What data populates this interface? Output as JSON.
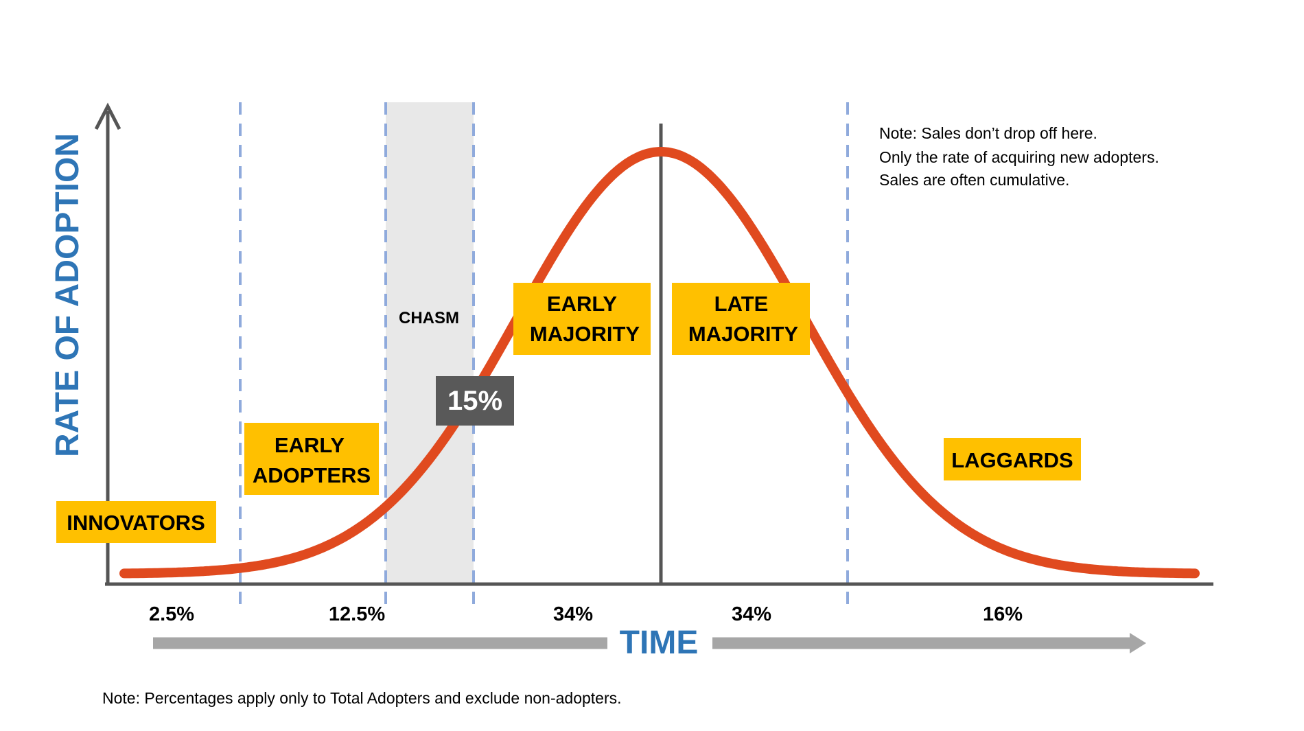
{
  "colors": {
    "curve": "#e04a1f",
    "axis": "#555555",
    "divider": "#8faadc",
    "chasm_fill": "#e8e8e8",
    "label_fill": "#ffc000",
    "axis_title": "#2e75b6",
    "time_arrow": "#a6a6a6",
    "badge_fill": "#595959"
  },
  "y_axis_title": "RATE OF ADOPTION",
  "x_axis_title": "TIME",
  "chasm": {
    "label": "CHASM",
    "badge": "15%"
  },
  "segments": [
    {
      "id": "innovators",
      "label_lines": [
        "INNOVATORS"
      ],
      "percent": "2.5%"
    },
    {
      "id": "early-adopters",
      "label_lines": [
        "EARLY",
        "ADOPTERS"
      ],
      "percent": "12.5%"
    },
    {
      "id": "early-majority",
      "label_lines": [
        "EARLY",
        "MAJORITY"
      ],
      "percent": "34%"
    },
    {
      "id": "late-majority",
      "label_lines": [
        "LATE",
        "MAJORITY"
      ],
      "percent": "34%"
    },
    {
      "id": "laggards",
      "label_lines": [
        "LAGGARDS"
      ],
      "percent": "16%"
    }
  ],
  "peak_note": [
    "Note: Sales don’t drop off here.",
    "Only the rate of acquiring new adopters.",
    "Sales are often cumulative."
  ],
  "footer_note": "Note: Percentages apply only to Total Adopters and exclude non-adopters."
}
